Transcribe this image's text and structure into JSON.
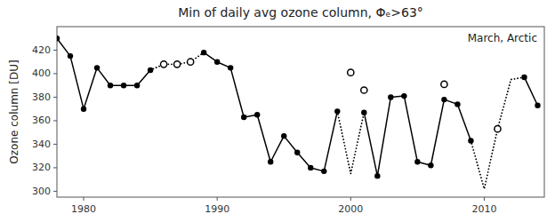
{
  "chart_data": {
    "type": "line",
    "title": "Min of daily avg ozone column, Φₑ>63°",
    "annotation": "March, Arctic",
    "y_label": "Ozone column [DU]",
    "x": [
      1978,
      1979,
      1980,
      1981,
      1982,
      1983,
      1984,
      1985,
      1986,
      1987,
      1988,
      1989,
      1990,
      1991,
      1992,
      1993,
      1994,
      1995,
      1996,
      1997,
      1998,
      1999,
      2000,
      2001,
      2002,
      2003,
      2004,
      2005,
      2006,
      2007,
      2008,
      2009,
      2010,
      2011,
      2012,
      2013,
      2014
    ],
    "series": [
      {
        "color": "#000000",
        "line_style": "solid",
        "marker": "circle",
        "values": [
          430,
          415,
          370,
          405,
          390,
          390,
          390,
          403,
          null,
          null,
          null,
          418,
          410,
          405,
          363,
          365,
          325,
          347,
          333,
          320,
          317,
          368,
          null,
          367,
          313,
          380,
          381,
          325,
          322,
          378,
          374,
          343,
          null,
          null,
          null,
          397,
          373
        ]
      },
      {
        "color": "#000000",
        "line_style": "dotted",
        "marker": "none",
        "values": [
          null,
          null,
          null,
          null,
          null,
          null,
          null,
          403,
          408,
          408,
          410,
          418,
          null,
          null,
          null,
          null,
          null,
          null,
          null,
          null,
          null,
          368,
          315,
          367,
          null,
          null,
          null,
          null,
          null,
          null,
          null,
          343,
          302,
          353,
          395,
          397,
          null
        ]
      },
      {
        "type": "scatter",
        "color": "#000000",
        "line_style": "none",
        "marker": "open-circle",
        "values": [
          null,
          null,
          null,
          null,
          null,
          null,
          null,
          null,
          408,
          408,
          410,
          null,
          null,
          null,
          null,
          null,
          null,
          null,
          null,
          null,
          null,
          null,
          401,
          386,
          null,
          null,
          null,
          null,
          null,
          391,
          null,
          null,
          null,
          353,
          null,
          null,
          null
        ]
      }
    ],
    "xlim": [
      1978,
      2014.5
    ],
    "ylim": [
      295,
      440
    ],
    "xticks": [
      1980,
      1990,
      2000,
      2010
    ],
    "yticks": [
      300,
      320,
      340,
      360,
      380,
      400,
      420
    ],
    "grid": false
  }
}
